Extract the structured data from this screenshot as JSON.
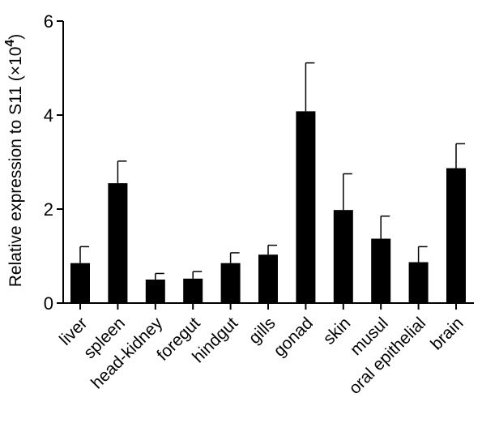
{
  "chart_data": {
    "type": "bar",
    "ylabel": "Relative expression to S11 (×10",
    "ylabel_exp": "4",
    "ylabel_close": ")",
    "ylim": [
      0,
      6
    ],
    "yticks": [
      "0",
      "2",
      "4",
      "6"
    ],
    "categories": [
      "liver",
      "spleen",
      "head-kidney",
      "foregut",
      "hindgut",
      "gills",
      "gonad",
      "skin",
      "musul",
      "oral epithelial",
      "brain"
    ],
    "values": [
      0.85,
      2.55,
      0.5,
      0.52,
      0.85,
      1.03,
      4.08,
      1.98,
      1.37,
      0.87,
      2.87
    ],
    "errors": [
      0.35,
      0.47,
      0.13,
      0.15,
      0.22,
      0.2,
      1.03,
      0.77,
      0.48,
      0.33,
      0.52
    ],
    "bar_color": "#000000",
    "grid": false,
    "legend": "none"
  }
}
